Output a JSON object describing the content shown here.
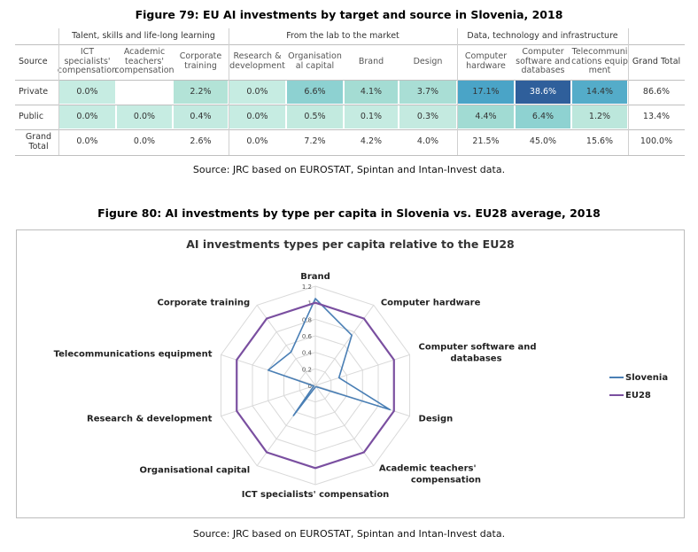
{
  "figure79": {
    "title": "Figure 79: EU AI investments by target and source in Slovenia, 2018",
    "source": "Source: JRC based on EUROSTAT, Spintan and Intan-Invest data.",
    "row_header": "Source",
    "groups": [
      {
        "label": "Talent, skills and life-long learning"
      },
      {
        "label": "From the lab to the market"
      },
      {
        "label": "Data, technology and infrastructure"
      }
    ],
    "columns": [
      {
        "label": "ICT specialists' compensation"
      },
      {
        "label": "Academic teachers' compensation"
      },
      {
        "label": "Corporate training"
      },
      {
        "label": "Research & development"
      },
      {
        "label": "Organisation al capital"
      },
      {
        "label": "Brand"
      },
      {
        "label": "Design"
      },
      {
        "label": "Computer hardware"
      },
      {
        "label": "Computer software and databases"
      },
      {
        "label": "Telecommuni cations equip ment"
      },
      {
        "label": "Grand Total"
      }
    ],
    "rows": [
      {
        "label": "Private",
        "cells": [
          {
            "text": "0.0%",
            "color": "#c6ece2"
          },
          {
            "text": "",
            "color": "#ffffff"
          },
          {
            "text": "2.2%",
            "color": "#b3e3d7"
          },
          {
            "text": "0.0%",
            "color": "#c6ece2"
          },
          {
            "text": "6.6%",
            "color": "#8dd1d1"
          },
          {
            "text": "4.1%",
            "color": "#a4dcd3"
          },
          {
            "text": "3.7%",
            "color": "#a9ded5"
          },
          {
            "text": "17.1%",
            "color": "#4aa4c7"
          },
          {
            "text": "38.6%",
            "color": "#2f5f9b"
          },
          {
            "text": "14.4%",
            "color": "#54acc9"
          },
          {
            "text": "86.6%",
            "color": "#ffffff"
          }
        ]
      },
      {
        "label": "Public",
        "cells": [
          {
            "text": "0.0%",
            "color": "#c6ece2"
          },
          {
            "text": "0.0%",
            "color": "#c6ece2"
          },
          {
            "text": "0.4%",
            "color": "#c3eae0"
          },
          {
            "text": "0.0%",
            "color": "#c6ece2"
          },
          {
            "text": "0.5%",
            "color": "#c2eadf"
          },
          {
            "text": "0.1%",
            "color": "#c5ebe1"
          },
          {
            "text": "0.3%",
            "color": "#c4eae0"
          },
          {
            "text": "4.4%",
            "color": "#a1dbd3"
          },
          {
            "text": "6.4%",
            "color": "#8ed2d1"
          },
          {
            "text": "1.2%",
            "color": "#bce7dc"
          },
          {
            "text": "13.4%",
            "color": "#ffffff"
          }
        ]
      },
      {
        "label": "Grand Total",
        "cells": [
          {
            "text": "0.0%",
            "color": "#ffffff"
          },
          {
            "text": "0.0%",
            "color": "#ffffff"
          },
          {
            "text": "2.6%",
            "color": "#ffffff"
          },
          {
            "text": "0.0%",
            "color": "#ffffff"
          },
          {
            "text": "7.2%",
            "color": "#ffffff"
          },
          {
            "text": "4.2%",
            "color": "#ffffff"
          },
          {
            "text": "4.0%",
            "color": "#ffffff"
          },
          {
            "text": "21.5%",
            "color": "#ffffff"
          },
          {
            "text": "45.0%",
            "color": "#ffffff"
          },
          {
            "text": "15.6%",
            "color": "#ffffff"
          },
          {
            "text": "100.0%",
            "color": "#ffffff"
          }
        ]
      }
    ]
  },
  "figure80": {
    "title": "Figure 80: AI investments by type per capita in Slovenia vs. EU28 average, 2018",
    "source": "Source: JRC based on EUROSTAT, Spintan and Intan-Invest data."
  },
  "chart_data": {
    "type": "radar",
    "title": "AI investments types per capita relative to the EU28",
    "axes": [
      "Brand",
      "Computer hardware",
      "Computer software and databases",
      "Design",
      "Academic teachers' compensation",
      "ICT specialists' compensation",
      "Organisational capital",
      "Research & development",
      "Telecommunications equipment",
      "Corporate training"
    ],
    "rlim": [
      0,
      1.2
    ],
    "ticks": [
      "0",
      "0.2",
      "0.4",
      "0.6",
      "0.8",
      "1",
      "1.2"
    ],
    "series": [
      {
        "name": "Slovenia",
        "color": "#4a7fb5",
        "values": [
          1.05,
          0.75,
          0.3,
          0.95,
          0.02,
          0.02,
          0.45,
          0.02,
          0.6,
          0.5
        ]
      },
      {
        "name": "EU28",
        "color": "#7a4fa0",
        "values": [
          1,
          1,
          1,
          1,
          1,
          1,
          1,
          1,
          1,
          1
        ]
      }
    ],
    "grid": true,
    "legend_position": "right"
  }
}
